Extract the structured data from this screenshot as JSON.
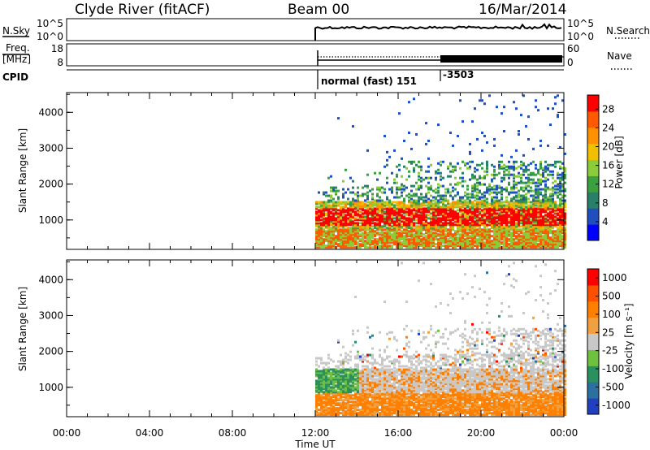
{
  "header": {
    "station": "Clyde River (fitACF)",
    "beam": "Beam 00",
    "date": "16/Mar/2014"
  },
  "top_panels": {
    "nsky_label": "N.Sky",
    "nsky_ticks": [
      "10^5",
      "10^0"
    ],
    "nsearch_label": "N.Search",
    "nsearch_ticks": [
      "10^5",
      "10^0"
    ],
    "freq_label_1": "Freq.",
    "freq_label_2": "[MHz]",
    "freq_ticks": [
      "18",
      "8"
    ],
    "nave_label": "Nave",
    "nave_ticks": [
      "60",
      "0"
    ],
    "cpid_label": "CPID",
    "cpid_text_1": "normal (fast) 151",
    "cpid_text_2": "-3503"
  },
  "chart_data": [
    {
      "type": "heatmap",
      "title": "",
      "xlabel": "Time UT",
      "ylabel": "Slant Range [km]",
      "x_ticks": [
        "00:00",
        "04:00",
        "08:00",
        "12:00",
        "16:00",
        "20:00",
        "00:00"
      ],
      "xlim_hours": [
        0,
        24
      ],
      "y_ticks": [
        "1000",
        "2000",
        "3000",
        "4000"
      ],
      "ylim": [
        180,
        4550
      ],
      "colorbar": {
        "label": "Power [dB]",
        "ticks": [
          "4",
          "8",
          "12",
          "16",
          "20",
          "24",
          "28"
        ],
        "range": [
          0,
          31
        ],
        "colors": [
          "#0000ff",
          "#1f4fbf",
          "#2a7f6a",
          "#3aa040",
          "#8ccc3a",
          "#f0c000",
          "#ff9000",
          "#ff5a00",
          "#ff0000"
        ]
      },
      "data_start_hour": 12
    },
    {
      "type": "heatmap",
      "title": "",
      "xlabel": "Time UT",
      "ylabel": "Slant Range [km]",
      "x_ticks": [
        "00:00",
        "04:00",
        "08:00",
        "12:00",
        "16:00",
        "20:00",
        "00:00"
      ],
      "xlim_hours": [
        0,
        24
      ],
      "y_ticks": [
        "1000",
        "2000",
        "3000",
        "4000"
      ],
      "ylim": [
        180,
        4550
      ],
      "colorbar": {
        "label": "Velocity [m s⁻¹]",
        "ticks": [
          "1000",
          "500",
          "100",
          "25",
          "-25",
          "-100",
          "-500",
          "-1000"
        ],
        "colors": [
          "#2040c0",
          "#2a70a0",
          "#2a9060",
          "#70c040",
          "#c8c8c8",
          "#f0a040",
          "#ff8000",
          "#ff5000",
          "#ff0000"
        ]
      },
      "data_start_hour": 12
    }
  ]
}
